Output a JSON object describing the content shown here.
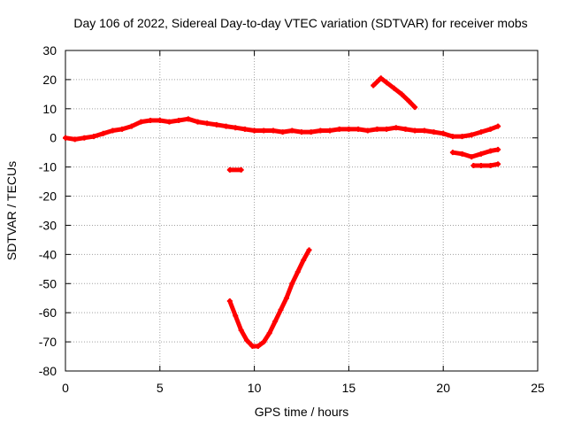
{
  "chart_data": {
    "type": "scatter",
    "title": "Day 106 of 2022, Sidereal Day-to-day VTEC variation (SDTVAR) for receiver mobs",
    "xlabel": "GPS time / hours",
    "ylabel": "SDTVAR / TECUs",
    "xlim": [
      0,
      25
    ],
    "ylim": [
      -80,
      30
    ],
    "x_ticks": [
      0,
      5,
      10,
      15,
      20,
      25
    ],
    "y_ticks": [
      -80,
      -70,
      -60,
      -50,
      -40,
      -30,
      -20,
      -10,
      0,
      10,
      20,
      30
    ],
    "grid": true,
    "legend": "none",
    "series_color": "#ff0000",
    "series": [
      {
        "name": "main-band",
        "x": [
          0.0,
          0.5,
          1.0,
          1.5,
          2.0,
          2.5,
          3.0,
          3.5,
          4.0,
          4.5,
          5.0,
          5.5,
          6.0,
          6.5,
          7.0,
          7.5,
          8.0,
          8.5,
          9.0,
          9.5,
          10.0,
          10.5,
          11.0,
          11.5,
          12.0,
          12.5,
          13.0,
          13.5,
          14.0,
          14.5,
          15.0,
          15.5,
          16.0,
          16.5,
          17.0,
          17.5,
          18.0,
          18.5,
          19.0,
          19.5,
          20.0,
          20.5,
          21.0,
          21.5,
          22.0,
          22.5,
          22.9
        ],
        "y": [
          0,
          -0.5,
          0,
          0.5,
          1.5,
          2.5,
          3,
          4,
          5.5,
          6,
          6,
          5.5,
          6,
          6.5,
          5.5,
          5,
          4.5,
          4,
          3.5,
          3,
          2.5,
          2.5,
          2.5,
          2,
          2.5,
          2,
          2,
          2.5,
          2.5,
          3,
          3,
          3,
          2.5,
          3,
          3,
          3.5,
          3,
          2.5,
          2.5,
          2,
          1.5,
          0.5,
          0.5,
          1,
          2,
          3,
          4
        ]
      },
      {
        "name": "dip-arc",
        "x": [
          8.7,
          9.0,
          9.3,
          9.6,
          9.9,
          10.2,
          10.5,
          10.8,
          11.1,
          11.4,
          11.7,
          12.0,
          12.3,
          12.6,
          12.9
        ],
        "y": [
          -56,
          -61,
          -66,
          -69.5,
          -71.5,
          -71.5,
          -70,
          -67,
          -63,
          -59,
          -55,
          -50,
          -46,
          -42,
          -38.5
        ]
      },
      {
        "name": "upper-arc",
        "x": [
          16.3,
          16.7,
          17.0,
          17.4,
          17.8,
          18.2,
          18.5
        ],
        "y": [
          18,
          20.5,
          19,
          17,
          15,
          12.5,
          10.5
        ]
      },
      {
        "name": "short-segment-9h",
        "x": [
          8.7,
          9.3
        ],
        "y": [
          -11,
          -11
        ]
      },
      {
        "name": "segment-21h",
        "x": [
          20.5,
          21.0,
          21.5,
          22.0,
          22.5,
          22.9
        ],
        "y": [
          -5,
          -5.5,
          -6.5,
          -5.5,
          -4.5,
          -4
        ]
      },
      {
        "name": "segment-22h",
        "x": [
          21.6,
          22.0,
          22.5,
          22.9
        ],
        "y": [
          -9.5,
          -9.5,
          -9.5,
          -9
        ]
      }
    ]
  }
}
